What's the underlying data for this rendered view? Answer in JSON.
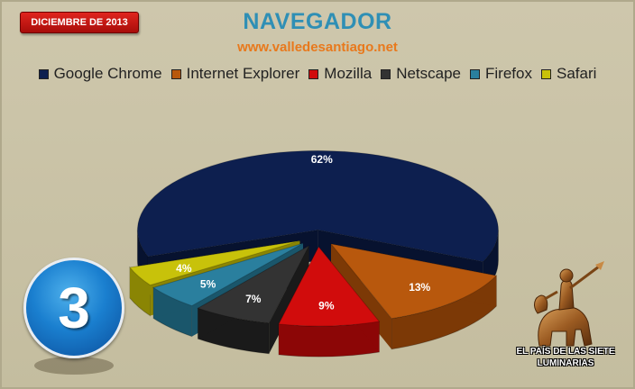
{
  "header": {
    "date_badge": "DICIEMBRE DE 2013",
    "title": "NAVEGADOR",
    "site": "www.valledesantiago.net"
  },
  "number_badge": "3",
  "logo": {
    "text_line1": "EL PAÍS DE LAS SIETE",
    "text_line2": "LUMINARIAS",
    "icon": "horseman-statue-icon"
  },
  "chart_data": {
    "type": "pie",
    "title": "NAVEGADOR",
    "categories": [
      "Google Chrome",
      "Internet Explorer",
      "Mozilla",
      "Netscape",
      "Firefox",
      "Safari"
    ],
    "values": [
      62,
      13,
      9,
      7,
      5,
      4
    ],
    "labels": [
      "62%",
      "13%",
      "9%",
      "7%",
      "5%",
      "4%"
    ],
    "colors": [
      "#0d1f4f",
      "#b8580d",
      "#d10c0c",
      "#333333",
      "#2a7f9e",
      "#c8c20a"
    ],
    "side_colors": [
      "#07122f",
      "#7c3906",
      "#8c0606",
      "#1a1a1a",
      "#1a566b",
      "#8a8504"
    ],
    "legend_position": "top",
    "style": "3d-exploded"
  }
}
